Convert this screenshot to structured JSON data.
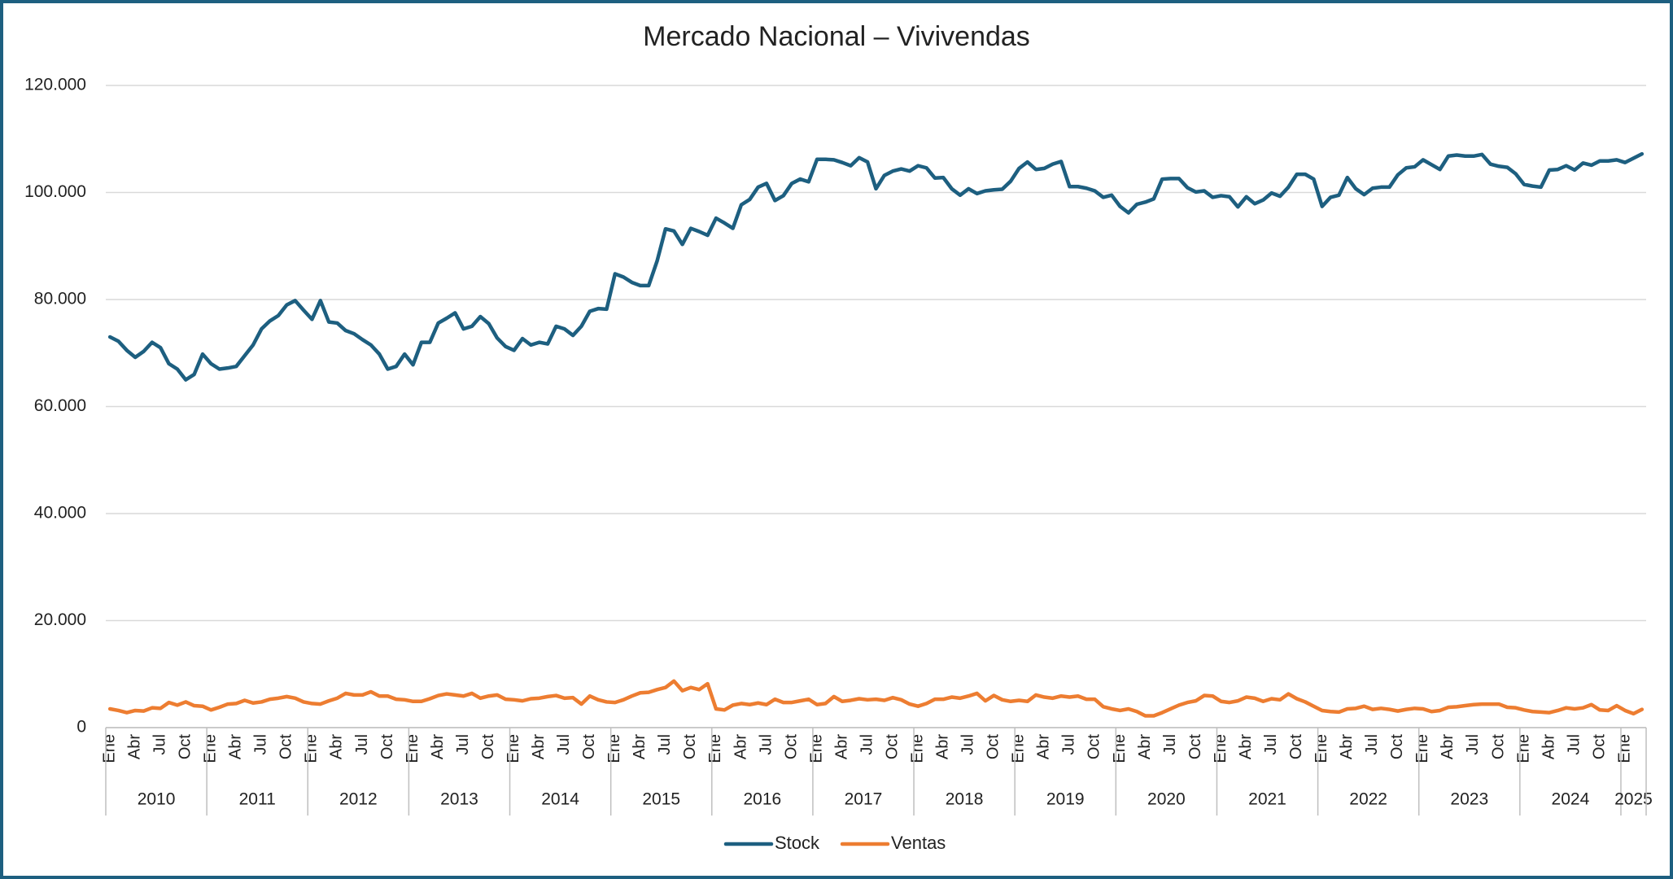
{
  "chart_data": {
    "type": "line",
    "title": "Mercado Nacional – Vivivendas",
    "categories": [
      "Ene",
      null,
      null,
      "Abr",
      null,
      null,
      "Jul",
      null,
      null,
      "Oct",
      null,
      null,
      "Ene",
      null,
      null,
      "Abr",
      null,
      null,
      "Jul",
      null,
      null,
      "Oct",
      null,
      null,
      "Ene",
      null,
      null,
      "Abr",
      null,
      null,
      "Jul",
      null,
      null,
      "Oct",
      null,
      null,
      "Ene",
      null,
      null,
      "Abr",
      null,
      null,
      "Jul",
      null,
      null,
      "Oct",
      null,
      null,
      "Ene",
      null,
      null,
      "Abr",
      null,
      null,
      "Jul",
      null,
      null,
      "Oct",
      null,
      null,
      "Ene",
      null,
      null,
      "Abr",
      null,
      null,
      "Jul",
      null,
      null,
      "Oct",
      null,
      null,
      "Ene",
      null,
      null,
      "Abr",
      null,
      null,
      "Jul",
      null,
      null,
      "Oct",
      null,
      null,
      "Ene",
      null,
      null,
      "Abr",
      null,
      null,
      "Jul",
      null,
      null,
      "Oct",
      null,
      null,
      "Ene",
      null,
      null,
      "Abr",
      null,
      null,
      "Jul",
      null,
      null,
      "Oct",
      null,
      null,
      "Ene",
      null,
      null,
      "Abr",
      null,
      null,
      "Jul",
      null,
      null,
      "Oct",
      null,
      null,
      "Ene",
      null,
      null,
      "Abr",
      null,
      null,
      "Jul",
      null,
      null,
      "Oct",
      null,
      null,
      "Ene",
      null,
      null,
      "Abr",
      null,
      null,
      "Jul",
      null,
      null,
      "Oct",
      null,
      null,
      "Ene",
      null,
      null,
      "Abr",
      null,
      null,
      "Jul",
      null,
      null,
      "Oct",
      null,
      null,
      "Ene",
      null,
      null,
      "Abr",
      null,
      null,
      "Jul",
      null,
      null,
      "Oct",
      null,
      null,
      "Ene",
      null,
      null,
      "Abr",
      null,
      null,
      "Jul",
      null,
      null,
      "Oct",
      null,
      null,
      "Ene",
      null,
      null
    ],
    "years": [
      "2010",
      "2011",
      "2012",
      "2013",
      "2014",
      "2015",
      "2016",
      "2017",
      "2018",
      "2019",
      "2020",
      "2021",
      "2022",
      "2023",
      "2024",
      "2025"
    ],
    "series": [
      {
        "name": "Stock",
        "color": "#1d5f80",
        "values": [
          73000,
          72200,
          70500,
          69200,
          70300,
          72000,
          71000,
          68000,
          67000,
          65000,
          66000,
          69800,
          68000,
          67000,
          67200,
          67500,
          69500,
          71500,
          74500,
          76000,
          77000,
          79000,
          79800,
          78000,
          76300,
          79800,
          75800,
          75600,
          74200,
          73600,
          72500,
          71500,
          69800,
          67000,
          67500,
          69800,
          67800,
          72000,
          72000,
          75600,
          76500,
          77500,
          74500,
          75000,
          76800,
          75500,
          72800,
          71200,
          70500,
          72700,
          71500,
          72000,
          71700,
          75000,
          74500,
          73300,
          75000,
          77800,
          78300,
          78200,
          84800,
          84200,
          83200,
          82600,
          82600,
          87200,
          93200,
          92800,
          90300,
          93300,
          92700,
          92000,
          95200,
          94300,
          93300,
          97700,
          98700,
          101000,
          101700,
          98500,
          99400,
          101700,
          102500,
          102000,
          106200,
          106200,
          106100,
          105600,
          105000,
          106500,
          105700,
          100700,
          103200,
          104000,
          104400,
          104000,
          105000,
          104600,
          102700,
          102800,
          100700,
          99500,
          100700,
          99800,
          100300,
          100500,
          100600,
          102100,
          104500,
          105700,
          104300,
          104500,
          105300,
          105800,
          101100,
          101100,
          100800,
          100300,
          99100,
          99500,
          97400,
          96200,
          97800,
          98200,
          98800,
          102500,
          102600,
          102600,
          100900,
          100100,
          100300,
          99100,
          99400,
          99200,
          97300,
          99200,
          97900,
          98600,
          99900,
          99300,
          101000,
          103400,
          103400,
          102500,
          97400,
          99100,
          99500,
          102800,
          100700,
          99600,
          100800,
          101000,
          101000,
          103300,
          104600,
          104800,
          106100,
          105200,
          104300,
          106800,
          107000,
          106800,
          106800,
          107100,
          105300,
          104900,
          104700,
          103500,
          101500,
          101200,
          101000,
          104200,
          104300,
          105000,
          104200,
          105500,
          105100,
          105900,
          105900,
          106100,
          105600,
          106400,
          107200
        ]
      },
      {
        "name": "Ventas",
        "color": "#ed7d31",
        "values": [
          3500,
          3200,
          2800,
          3200,
          3100,
          3700,
          3600,
          4700,
          4200,
          4800,
          4100,
          4000,
          3300,
          3800,
          4400,
          4500,
          5100,
          4600,
          4800,
          5300,
          5500,
          5800,
          5500,
          4800,
          4500,
          4400,
          5000,
          5500,
          6400,
          6100,
          6100,
          6700,
          5900,
          5900,
          5300,
          5200,
          4900,
          4900,
          5400,
          6000,
          6300,
          6100,
          5900,
          6400,
          5500,
          5900,
          6100,
          5300,
          5200,
          5000,
          5400,
          5500,
          5800,
          6000,
          5500,
          5600,
          4400,
          5900,
          5200,
          4800,
          4700,
          5200,
          5900,
          6500,
          6600,
          7100,
          7500,
          8700,
          6900,
          7500,
          7100,
          8200,
          3500,
          3300,
          4200,
          4500,
          4300,
          4600,
          4300,
          5300,
          4700,
          4700,
          5000,
          5300,
          4300,
          4500,
          5800,
          4900,
          5100,
          5400,
          5200,
          5300,
          5100,
          5600,
          5200,
          4400,
          4000,
          4500,
          5300,
          5300,
          5700,
          5500,
          5900,
          6400,
          5000,
          6000,
          5200,
          4900,
          5100,
          4900,
          6100,
          5700,
          5500,
          5900,
          5700,
          5900,
          5300,
          5300,
          3900,
          3500,
          3200,
          3500,
          3000,
          2200,
          2200,
          2800,
          3500,
          4200,
          4700,
          5000,
          6000,
          5900,
          4900,
          4700,
          5000,
          5700,
          5500,
          4900,
          5400,
          5200,
          6300,
          5400,
          4800,
          4000,
          3200,
          3000,
          2900,
          3500,
          3600,
          4000,
          3400,
          3600,
          3400,
          3100,
          3400,
          3600,
          3500,
          3000,
          3200,
          3800,
          3900,
          4100,
          4300,
          4400,
          4400,
          4400,
          3800,
          3700,
          3300,
          3000,
          2900,
          2800,
          3200,
          3700,
          3500,
          3700,
          4300,
          3300,
          3200,
          4100,
          3200,
          2600,
          3400
        ]
      }
    ],
    "ylim": [
      0,
      120000
    ],
    "yticks": [
      0,
      {
        "value": 20000,
        "label": "20.000"
      },
      {
        "value": 40000,
        "label": "40.000"
      },
      {
        "value": 60000,
        "label": "60.000"
      },
      {
        "value": 80000,
        "label": "80.000"
      },
      {
        "value": 100000,
        "label": "100.000"
      },
      {
        "value": 120000,
        "label": "120.000"
      }
    ],
    "grid": true,
    "legend": "bottom"
  }
}
